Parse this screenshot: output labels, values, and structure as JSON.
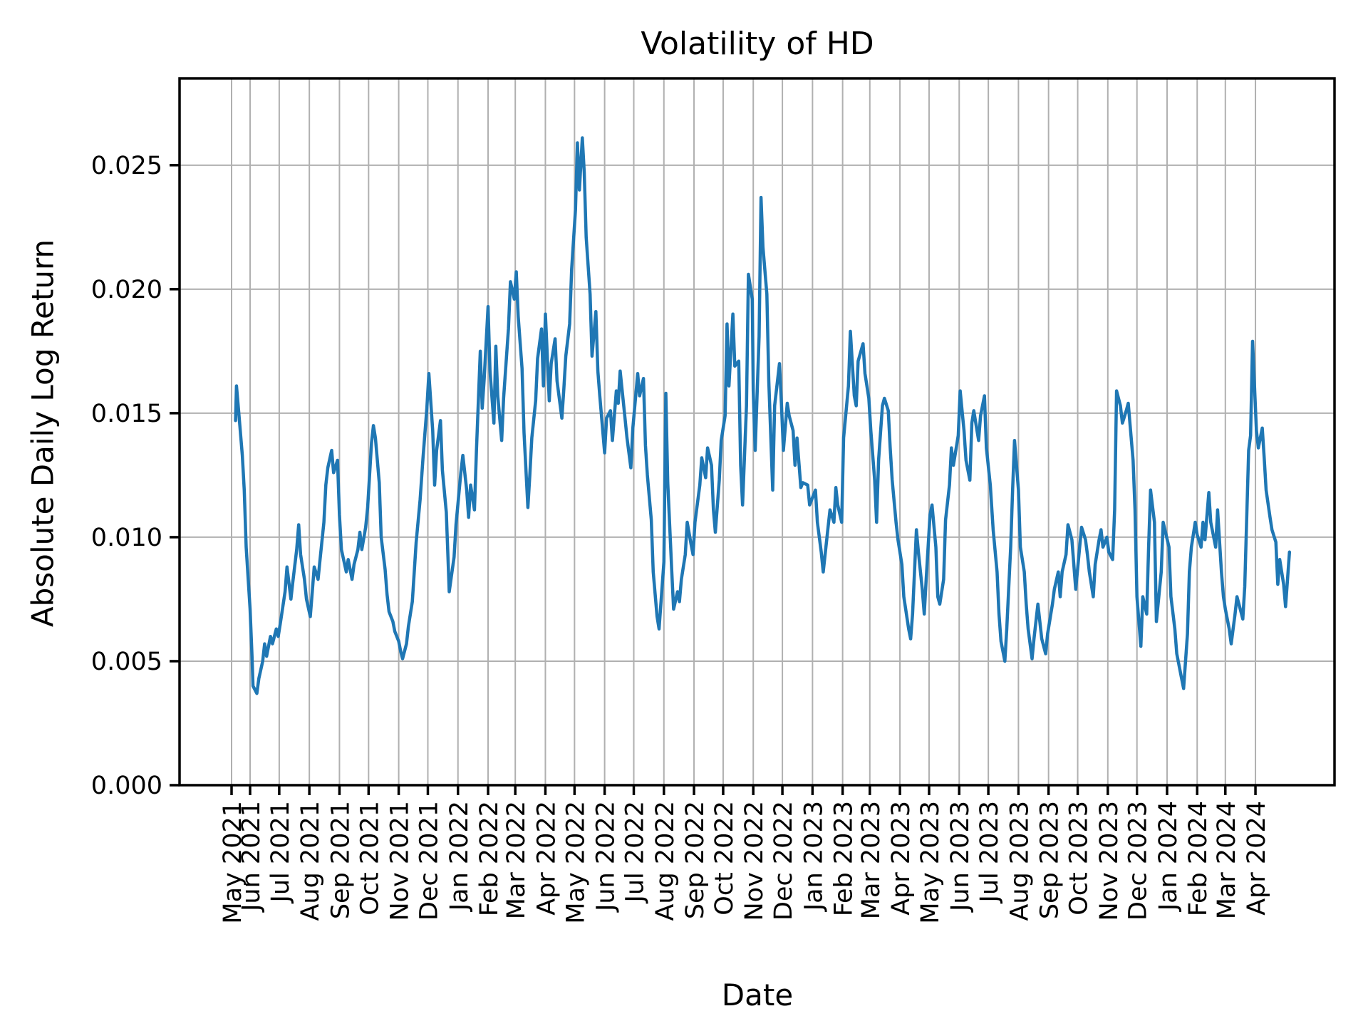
{
  "chart_data": {
    "type": "line",
    "title": "Volatility of HD",
    "xlabel": "Date",
    "ylabel": "Absolute Daily Log Return",
    "legend_position": "none",
    "grid": true,
    "line_color": "#1f77b4",
    "grid_color": "#b0b0b0",
    "spine_color": "#000000",
    "ylim": [
      0.0,
      0.0285
    ],
    "yticks": [
      0.0,
      0.005,
      0.01,
      0.015,
      0.02,
      0.025
    ],
    "ytick_labels": [
      "0.000",
      "0.005",
      "0.010",
      "0.015",
      "0.020",
      "0.025"
    ],
    "xtick_labels": [
      "May 2021",
      "Jun 2021",
      "Jul 2021",
      "Aug 2021",
      "Sep 2021",
      "Oct 2021",
      "Nov 2021",
      "Dec 2021",
      "Jan 2022",
      "Feb 2022",
      "Mar 2022",
      "Apr 2022",
      "May 2022",
      "Jun 2022",
      "Jul 2022",
      "Aug 2022",
      "Sep 2022",
      "Oct 2022",
      "Nov 2022",
      "Dec 2022",
      "Jan 2023",
      "Feb 2023",
      "Mar 2023",
      "Apr 2023",
      "May 2023",
      "Jun 2023",
      "Jul 2023",
      "Aug 2023",
      "Sep 2023",
      "Oct 2023",
      "Nov 2023",
      "Dec 2023",
      "Jan 2024",
      "Feb 2024",
      "Mar 2024",
      "Apr 2024"
    ],
    "series": [
      {
        "name": "HD",
        "dates": [
          "2021-05-17",
          "2021-05-18",
          "2021-05-20",
          "2021-05-24",
          "2021-05-26",
          "2021-05-28",
          "2021-06-01",
          "2021-06-03",
          "2021-06-04",
          "2021-06-08",
          "2021-06-10",
          "2021-06-14",
          "2021-06-16",
          "2021-06-18",
          "2021-06-22",
          "2021-06-24",
          "2021-06-28",
          "2021-06-30",
          "2021-07-02",
          "2021-07-07",
          "2021-07-09",
          "2021-07-13",
          "2021-07-15",
          "2021-07-19",
          "2021-07-21",
          "2021-07-23",
          "2021-07-27",
          "2021-07-29",
          "2021-08-02",
          "2021-08-04",
          "2021-08-06",
          "2021-08-10",
          "2021-08-12",
          "2021-08-16",
          "2021-08-18",
          "2021-08-20",
          "2021-08-24",
          "2021-08-26",
          "2021-08-30",
          "2021-09-01",
          "2021-09-03",
          "2021-09-08",
          "2021-09-10",
          "2021-09-14",
          "2021-09-16",
          "2021-09-20",
          "2021-09-22",
          "2021-09-24",
          "2021-09-28",
          "2021-09-30",
          "2021-10-04",
          "2021-10-06",
          "2021-10-08",
          "2021-10-12",
          "2021-10-14",
          "2021-10-18",
          "2021-10-20",
          "2021-10-22",
          "2021-10-26",
          "2021-10-28",
          "2021-11-01",
          "2021-11-03",
          "2021-11-05",
          "2021-11-09",
          "2021-11-11",
          "2021-11-15",
          "2021-11-17",
          "2021-11-19",
          "2021-11-23",
          "2021-11-26",
          "2021-11-30",
          "2021-12-02",
          "2021-12-06",
          "2021-12-08",
          "2021-12-10",
          "2021-12-14",
          "2021-12-16",
          "2021-12-20",
          "2021-12-22",
          "2021-12-23",
          "2021-12-28",
          "2021-12-30",
          "2022-01-04",
          "2022-01-06",
          "2022-01-10",
          "2022-01-12",
          "2022-01-14",
          "2022-01-18",
          "2022-01-20",
          "2022-01-24",
          "2022-01-26",
          "2022-01-28",
          "2022-02-01",
          "2022-02-03",
          "2022-02-07",
          "2022-02-09",
          "2022-02-11",
          "2022-02-15",
          "2022-02-17",
          "2022-02-22",
          "2022-02-24",
          "2022-02-28",
          "2022-03-02",
          "2022-03-04",
          "2022-03-08",
          "2022-03-10",
          "2022-03-14",
          "2022-03-16",
          "2022-03-18",
          "2022-03-22",
          "2022-03-24",
          "2022-03-28",
          "2022-03-30",
          "2022-04-01",
          "2022-04-05",
          "2022-04-07",
          "2022-04-11",
          "2022-04-13",
          "2022-04-18",
          "2022-04-20",
          "2022-04-22",
          "2022-04-26",
          "2022-04-28",
          "2022-05-02",
          "2022-05-04",
          "2022-05-06",
          "2022-05-09",
          "2022-05-11",
          "2022-05-13",
          "2022-05-17",
          "2022-05-19",
          "2022-05-23",
          "2022-05-25",
          "2022-05-27",
          "2022-06-01",
          "2022-06-03",
          "2022-06-07",
          "2022-06-09",
          "2022-06-13",
          "2022-06-15",
          "2022-06-17",
          "2022-06-22",
          "2022-06-24",
          "2022-06-28",
          "2022-06-30",
          "2022-07-05",
          "2022-07-07",
          "2022-07-11",
          "2022-07-13",
          "2022-07-15",
          "2022-07-19",
          "2022-07-21",
          "2022-07-25",
          "2022-07-27",
          "2022-08-01",
          "2022-08-03",
          "2022-08-05",
          "2022-08-09",
          "2022-08-11",
          "2022-08-15",
          "2022-08-17",
          "2022-08-19",
          "2022-08-23",
          "2022-08-25",
          "2022-08-29",
          "2022-08-31",
          "2022-09-02",
          "2022-09-07",
          "2022-09-09",
          "2022-09-13",
          "2022-09-15",
          "2022-09-19",
          "2022-09-21",
          "2022-09-23",
          "2022-09-27",
          "2022-09-29",
          "2022-10-03",
          "2022-10-05",
          "2022-10-07",
          "2022-10-11",
          "2022-10-13",
          "2022-10-17",
          "2022-10-19",
          "2022-10-21",
          "2022-10-25",
          "2022-10-27",
          "2022-10-31",
          "2022-11-01",
          "2022-11-03",
          "2022-11-07",
          "2022-11-09",
          "2022-11-11",
          "2022-11-15",
          "2022-11-17",
          "2022-11-21",
          "2022-11-23",
          "2022-11-28",
          "2022-11-30",
          "2022-12-02",
          "2022-12-06",
          "2022-12-08",
          "2022-12-12",
          "2022-12-14",
          "2022-12-16",
          "2022-12-20",
          "2022-12-22",
          "2022-12-27",
          "2022-12-29",
          "2023-01-04",
          "2023-01-06",
          "2023-01-10",
          "2023-01-12",
          "2023-01-17",
          "2023-01-19",
          "2023-01-23",
          "2023-01-25",
          "2023-01-27",
          "2023-01-31",
          "2023-02-02",
          "2023-02-07",
          "2023-02-09",
          "2023-02-13",
          "2023-02-15",
          "2023-02-17",
          "2023-02-22",
          "2023-02-24",
          "2023-02-28",
          "2023-03-02",
          "2023-03-06",
          "2023-03-08",
          "2023-03-10",
          "2023-03-14",
          "2023-03-16",
          "2023-03-20",
          "2023-03-22",
          "2023-03-24",
          "2023-03-28",
          "2023-03-30",
          "2023-04-03",
          "2023-04-05",
          "2023-04-10",
          "2023-04-12",
          "2023-04-14",
          "2023-04-18",
          "2023-04-20",
          "2023-04-24",
          "2023-04-26",
          "2023-04-28",
          "2023-05-02",
          "2023-05-04",
          "2023-05-08",
          "2023-05-10",
          "2023-05-12",
          "2023-05-16",
          "2023-05-18",
          "2023-05-22",
          "2023-05-24",
          "2023-05-26",
          "2023-05-31",
          "2023-06-02",
          "2023-06-06",
          "2023-06-08",
          "2023-06-12",
          "2023-06-14",
          "2023-06-16",
          "2023-06-21",
          "2023-06-23",
          "2023-06-27",
          "2023-06-29",
          "2023-07-03",
          "2023-07-06",
          "2023-07-10",
          "2023-07-12",
          "2023-07-14",
          "2023-07-18",
          "2023-07-20",
          "2023-07-24",
          "2023-07-26",
          "2023-07-28",
          "2023-08-01",
          "2023-08-03",
          "2023-08-07",
          "2023-08-09",
          "2023-08-11",
          "2023-08-15",
          "2023-08-17",
          "2023-08-21",
          "2023-08-23",
          "2023-08-25",
          "2023-08-29",
          "2023-08-31",
          "2023-09-05",
          "2023-09-07",
          "2023-09-11",
          "2023-09-13",
          "2023-09-15",
          "2023-09-19",
          "2023-09-21",
          "2023-09-25",
          "2023-09-27",
          "2023-09-29",
          "2023-10-03",
          "2023-10-05",
          "2023-10-09",
          "2023-10-11",
          "2023-10-13",
          "2023-10-17",
          "2023-10-19",
          "2023-10-23",
          "2023-10-25",
          "2023-10-27",
          "2023-10-31",
          "2023-11-02",
          "2023-11-06",
          "2023-11-08",
          "2023-11-10",
          "2023-11-14",
          "2023-11-16",
          "2023-11-20",
          "2023-11-22",
          "2023-11-27",
          "2023-11-29",
          "2023-12-01",
          "2023-12-05",
          "2023-12-07",
          "2023-12-11",
          "2023-12-13",
          "2023-12-15",
          "2023-12-19",
          "2023-12-21",
          "2023-12-26",
          "2023-12-28",
          "2024-01-03",
          "2024-01-05",
          "2024-01-09",
          "2024-01-11",
          "2024-01-16",
          "2024-01-18",
          "2024-01-22",
          "2024-01-24",
          "2024-01-26",
          "2024-01-30",
          "2024-02-01",
          "2024-02-05",
          "2024-02-07",
          "2024-02-09",
          "2024-02-13",
          "2024-02-15",
          "2024-02-20",
          "2024-02-22",
          "2024-02-26",
          "2024-02-28",
          "2024-03-01",
          "2024-03-05",
          "2024-03-07",
          "2024-03-11",
          "2024-03-13",
          "2024-03-15",
          "2024-03-19",
          "2024-03-21",
          "2024-03-25",
          "2024-03-27",
          "2024-03-29",
          "2024-04-02",
          "2024-04-04",
          "2024-04-08",
          "2024-04-10",
          "2024-04-12",
          "2024-04-16",
          "2024-04-18",
          "2024-04-22",
          "2024-04-24",
          "2024-04-26",
          "2024-04-30",
          "2024-05-02",
          "2024-05-06"
        ],
        "values": [
          0.0147,
          0.0161,
          0.0152,
          0.0133,
          0.0119,
          0.0096,
          0.0071,
          0.0052,
          0.004,
          0.0037,
          0.0043,
          0.005,
          0.0057,
          0.0052,
          0.006,
          0.0057,
          0.0063,
          0.006,
          0.0065,
          0.0078,
          0.0088,
          0.0075,
          0.0082,
          0.0095,
          0.0105,
          0.0093,
          0.0083,
          0.0075,
          0.0068,
          0.0078,
          0.0088,
          0.0083,
          0.0091,
          0.0106,
          0.0121,
          0.0128,
          0.0135,
          0.0126,
          0.0131,
          0.0109,
          0.0095,
          0.0086,
          0.0091,
          0.0083,
          0.0089,
          0.0095,
          0.0102,
          0.0095,
          0.0104,
          0.0112,
          0.0138,
          0.0145,
          0.014,
          0.0122,
          0.01,
          0.0087,
          0.0077,
          0.007,
          0.0066,
          0.0062,
          0.0058,
          0.0054,
          0.0051,
          0.0057,
          0.0064,
          0.0074,
          0.0086,
          0.0098,
          0.0115,
          0.0132,
          0.0152,
          0.0166,
          0.0143,
          0.0121,
          0.0135,
          0.0147,
          0.0127,
          0.011,
          0.0089,
          0.0078,
          0.0092,
          0.0105,
          0.0126,
          0.0133,
          0.0119,
          0.0108,
          0.0121,
          0.0111,
          0.0135,
          0.0175,
          0.0152,
          0.0164,
          0.0193,
          0.0167,
          0.0146,
          0.0177,
          0.0157,
          0.0139,
          0.0156,
          0.0184,
          0.0203,
          0.0196,
          0.0207,
          0.0189,
          0.0168,
          0.0142,
          0.0112,
          0.0125,
          0.014,
          0.0155,
          0.0172,
          0.0184,
          0.0161,
          0.019,
          0.0155,
          0.017,
          0.018,
          0.0163,
          0.0148,
          0.016,
          0.0173,
          0.0186,
          0.0208,
          0.0232,
          0.0259,
          0.024,
          0.0261,
          0.0247,
          0.0221,
          0.0198,
          0.0173,
          0.0191,
          0.0167,
          0.0157,
          0.0134,
          0.0148,
          0.0151,
          0.0139,
          0.0159,
          0.0154,
          0.0167,
          0.0148,
          0.014,
          0.0128,
          0.0144,
          0.0166,
          0.0157,
          0.0164,
          0.0137,
          0.0125,
          0.0107,
          0.0086,
          0.0068,
          0.0063,
          0.009,
          0.0158,
          0.0122,
          0.0087,
          0.0071,
          0.0078,
          0.0074,
          0.0083,
          0.0093,
          0.0106,
          0.0097,
          0.0093,
          0.0106,
          0.0121,
          0.0132,
          0.0124,
          0.0136,
          0.0129,
          0.0111,
          0.0102,
          0.0123,
          0.0139,
          0.0149,
          0.0186,
          0.0161,
          0.019,
          0.0169,
          0.0171,
          0.0129,
          0.0113,
          0.0153,
          0.0206,
          0.0196,
          0.0159,
          0.0135,
          0.0181,
          0.0237,
          0.0217,
          0.0198,
          0.0163,
          0.0119,
          0.0153,
          0.017,
          0.0154,
          0.0135,
          0.0154,
          0.0149,
          0.0143,
          0.0129,
          0.014,
          0.012,
          0.0122,
          0.0121,
          0.0113,
          0.0119,
          0.0106,
          0.0094,
          0.0086,
          0.0104,
          0.0111,
          0.0106,
          0.012,
          0.0113,
          0.0106,
          0.014,
          0.0161,
          0.0183,
          0.0157,
          0.0153,
          0.0171,
          0.0178,
          0.0166,
          0.0156,
          0.0143,
          0.0123,
          0.0106,
          0.0131,
          0.0153,
          0.0156,
          0.0151,
          0.0136,
          0.0123,
          0.0106,
          0.0099,
          0.0089,
          0.0076,
          0.0063,
          0.0059,
          0.0069,
          0.0103,
          0.0094,
          0.0079,
          0.0069,
          0.0083,
          0.0109,
          0.0113,
          0.0096,
          0.0076,
          0.0073,
          0.0083,
          0.0107,
          0.0121,
          0.0136,
          0.0129,
          0.0141,
          0.0159,
          0.0143,
          0.0131,
          0.0123,
          0.0146,
          0.0151,
          0.0139,
          0.0149,
          0.0157,
          0.0136,
          0.0121,
          0.0103,
          0.0086,
          0.0069,
          0.0058,
          0.005,
          0.0063,
          0.0096,
          0.0119,
          0.0139,
          0.0119,
          0.0096,
          0.0086,
          0.0073,
          0.0063,
          0.0051,
          0.0059,
          0.0073,
          0.0066,
          0.0059,
          0.0053,
          0.0061,
          0.0073,
          0.0079,
          0.0086,
          0.0076,
          0.0086,
          0.0093,
          0.0105,
          0.0099,
          0.0089,
          0.0079,
          0.0096,
          0.0104,
          0.0099,
          0.0093,
          0.0086,
          0.0076,
          0.0089,
          0.0099,
          0.0103,
          0.0096,
          0.01,
          0.0094,
          0.0091,
          0.0111,
          0.0159,
          0.0153,
          0.0146,
          0.0151,
          0.0154,
          0.0131,
          0.0111,
          0.0076,
          0.0056,
          0.0076,
          0.0069,
          0.0096,
          0.0119,
          0.0106,
          0.0066,
          0.0086,
          0.0106,
          0.0096,
          0.0076,
          0.0063,
          0.0053,
          0.0043,
          0.0039,
          0.0061,
          0.0086,
          0.0096,
          0.0106,
          0.0101,
          0.0096,
          0.0106,
          0.0099,
          0.0118,
          0.0106,
          0.0096,
          0.0111,
          0.0086,
          0.0076,
          0.0071,
          0.0063,
          0.0057,
          0.0069,
          0.0076,
          0.0073,
          0.0067,
          0.008,
          0.0135,
          0.0141,
          0.0179,
          0.0143,
          0.0136,
          0.0144,
          0.0132,
          0.0119,
          0.0108,
          0.0103,
          0.0098,
          0.0081,
          0.0091,
          0.0081,
          0.0072,
          0.0094
        ]
      }
    ]
  }
}
